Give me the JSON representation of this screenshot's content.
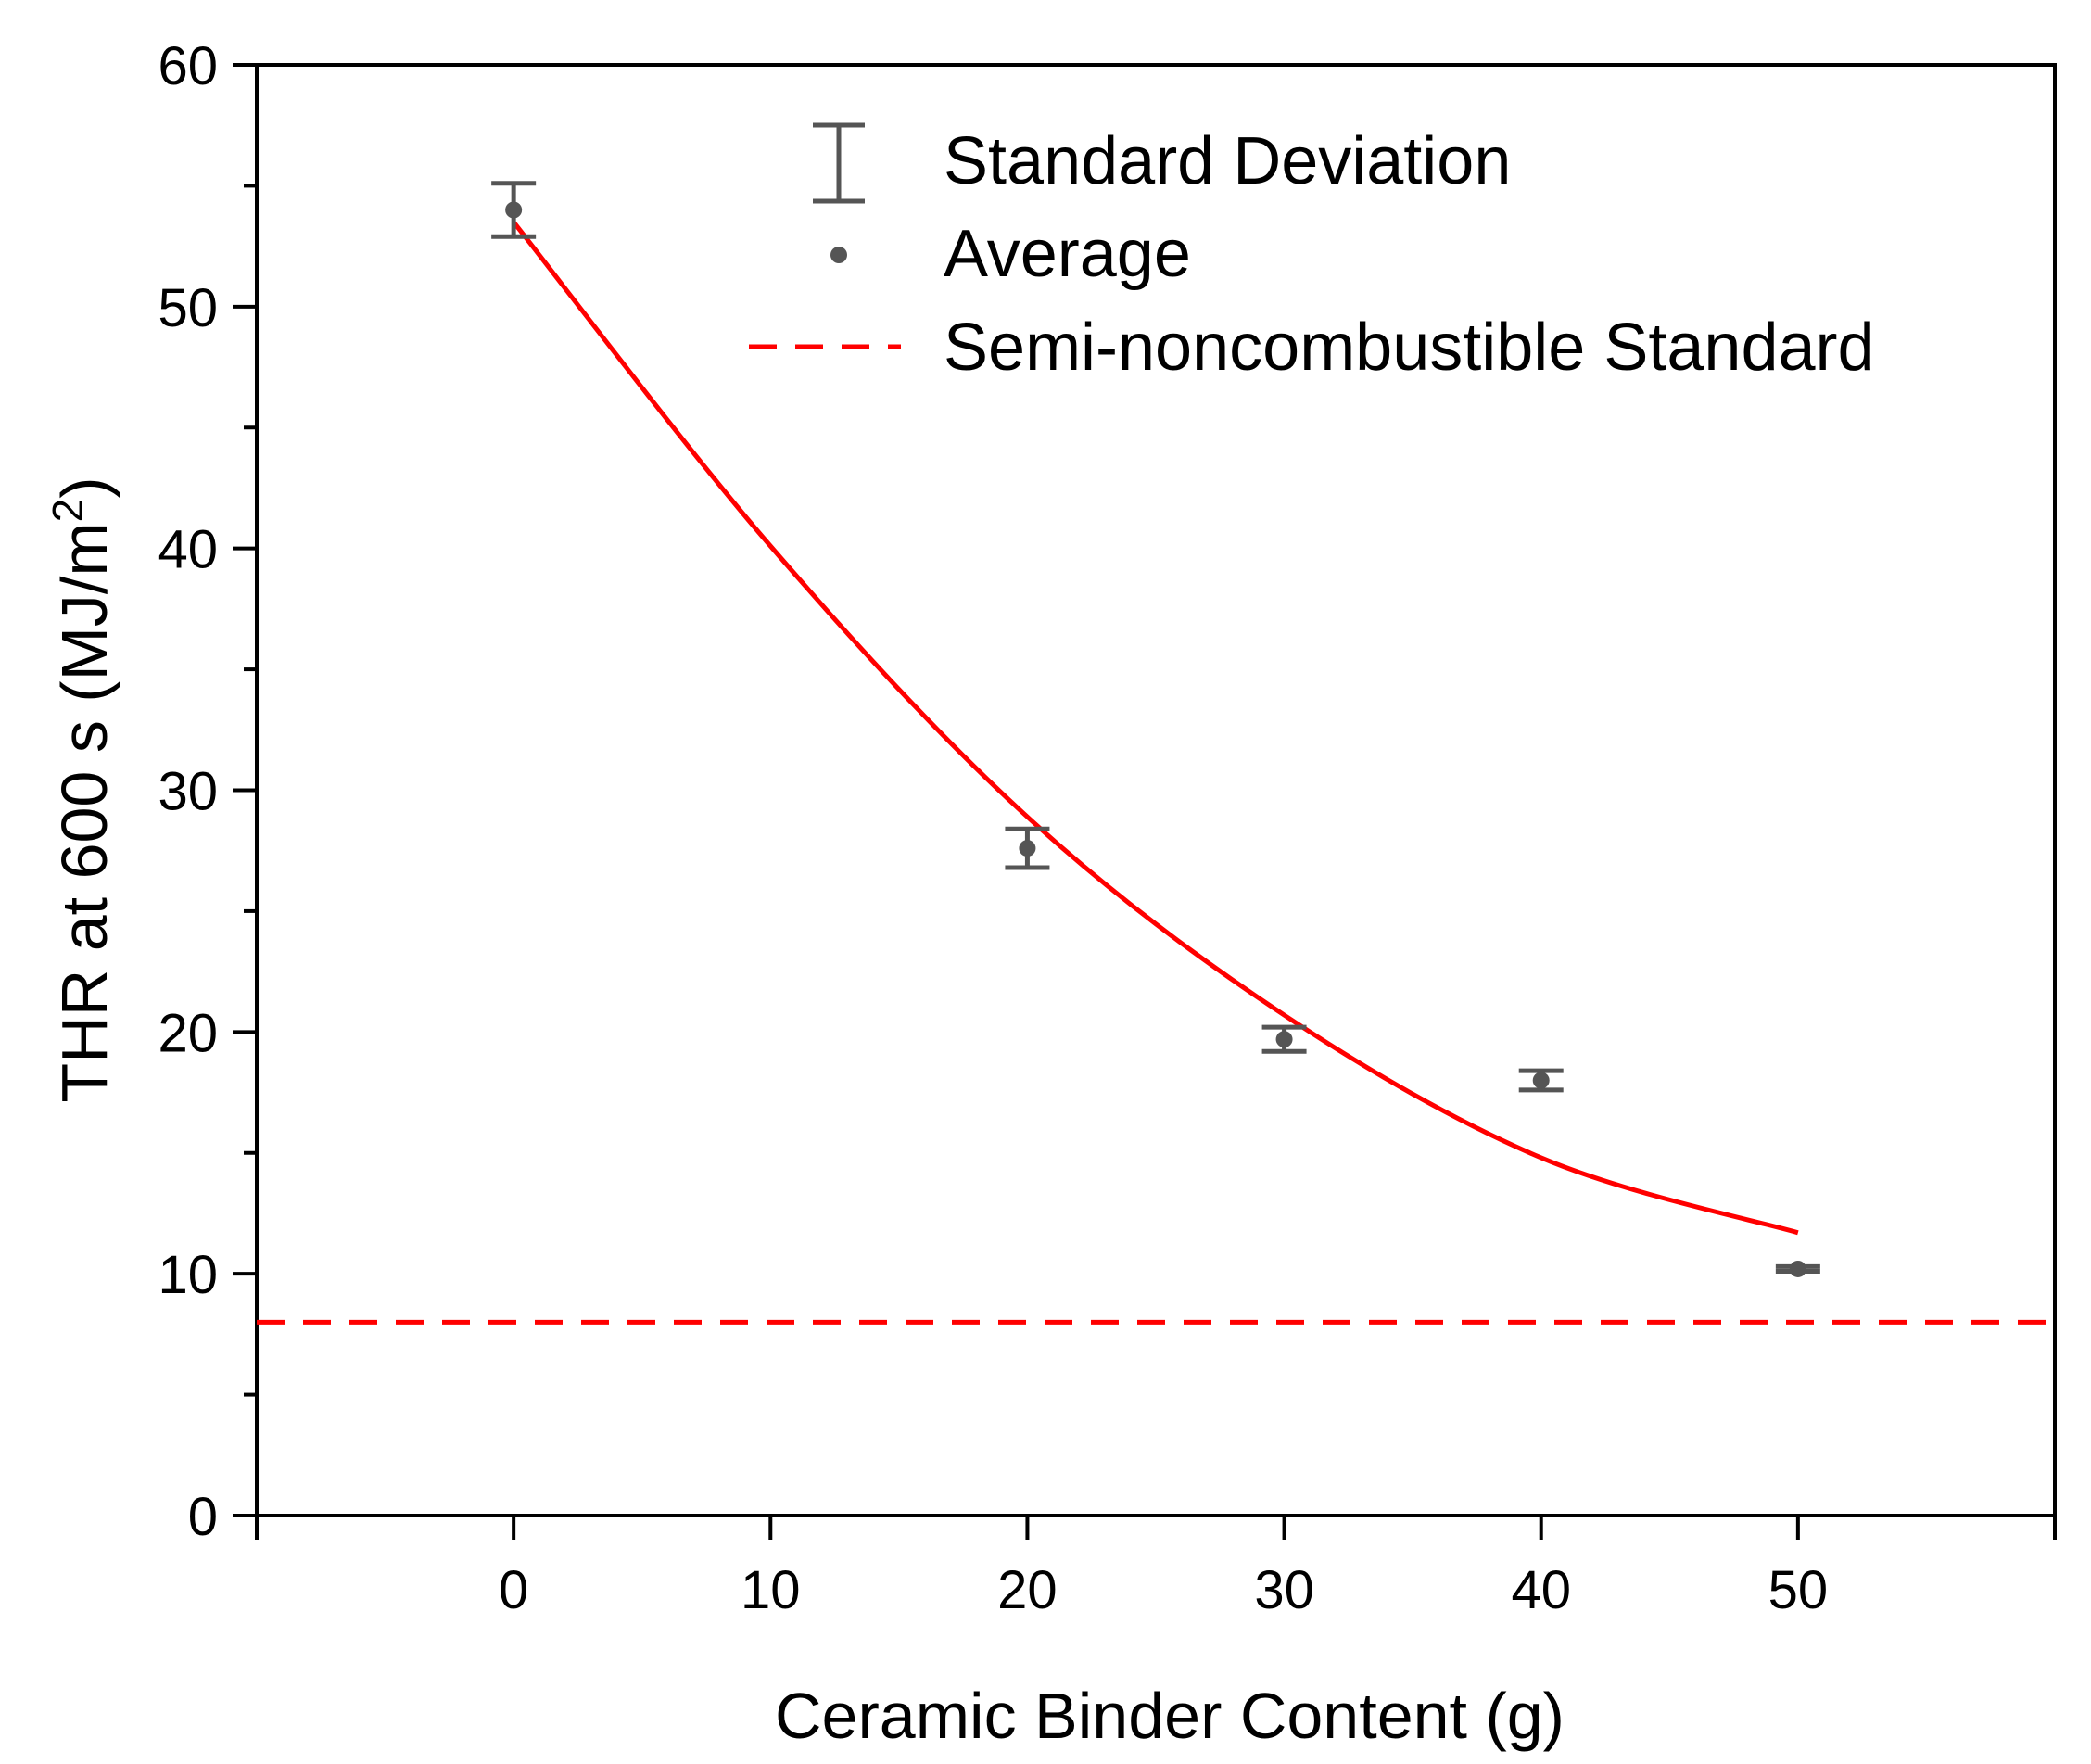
{
  "chart_data": {
    "type": "scatter",
    "title": "",
    "xlabel": "Ceramic Binder Content (g)",
    "ylabel_main": "THR at 600 s (MJ/m",
    "ylabel_sup": "2",
    "ylabel_close": ")",
    "xlim": [
      -10,
      60
    ],
    "ylim": [
      0,
      60
    ],
    "xticks": [
      0,
      10,
      20,
      30,
      40,
      50
    ],
    "yticks": [
      0,
      10,
      20,
      30,
      40,
      50,
      60
    ],
    "x_tick_labels": [
      "0",
      "10",
      "20",
      "30",
      "40",
      "50"
    ],
    "y_tick_labels": [
      "0",
      "10",
      "20",
      "30",
      "40",
      "50",
      "60"
    ],
    "series": [
      {
        "name": "Average",
        "x": [
          0,
          20,
          30,
          40,
          50
        ],
        "y": [
          54.0,
          27.6,
          19.7,
          18.0,
          10.2
        ],
        "error": [
          1.1,
          0.8,
          0.5,
          0.4,
          0.1
        ],
        "color": "#555555"
      }
    ],
    "fit_curve": {
      "name": "Fit",
      "x": [
        0,
        10,
        20,
        30,
        40,
        50
      ],
      "y": [
        53.5,
        40.1,
        28.9,
        20.7,
        14.8,
        11.7
      ],
      "color": "#ff0000"
    },
    "reference_line": {
      "name": "Semi-noncombustible Standard",
      "y": 8,
      "color": "#ff0000"
    },
    "legend": {
      "position": "top-right",
      "entries": [
        "Standard Deviation",
        "Average",
        "Semi-noncombustible Standard"
      ]
    },
    "grid": false
  }
}
